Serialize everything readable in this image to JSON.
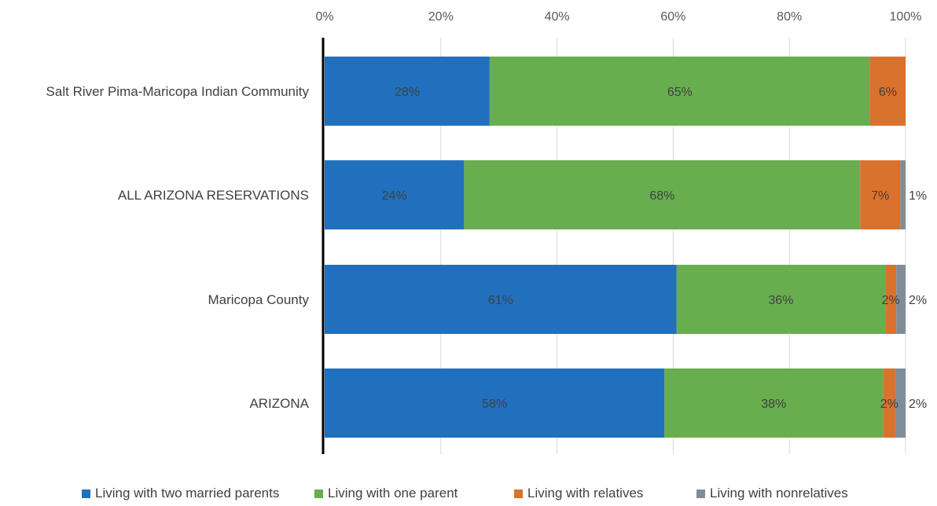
{
  "chart_data": {
    "type": "bar",
    "orientation": "horizontal",
    "stacked": "percent",
    "title": "",
    "xlabel": "",
    "ylabel": "",
    "xlim": [
      0,
      100
    ],
    "x_ticks": [
      "0%",
      "20%",
      "40%",
      "60%",
      "80%",
      "100%"
    ],
    "x_axis_position": "top",
    "grid": true,
    "legend_position": "bottom",
    "categories": [
      "Salt River Pima-Maricopa Indian Community",
      "ALL ARIZONA RESERVATIONS",
      "Maricopa County",
      "ARIZONA"
    ],
    "series": [
      {
        "name": "Living with two married parents",
        "color": "#2170bd",
        "values": [
          28.4,
          24.0,
          60.6,
          58.5
        ],
        "labels": [
          "28%",
          "24%",
          "61%",
          "58%"
        ]
      },
      {
        "name": "Living with one parent",
        "color": "#68ae4f",
        "values": [
          65.5,
          68.2,
          35.9,
          37.6
        ],
        "labels": [
          "65%",
          "68%",
          "36%",
          "38%"
        ]
      },
      {
        "name": "Living with relatives",
        "color": "#d9722d",
        "values": [
          6.1,
          6.9,
          1.9,
          2.2
        ],
        "labels": [
          "6%",
          "7%",
          "2%",
          "2%"
        ]
      },
      {
        "name": "Living with nonrelatives",
        "color": "#7f8d9b",
        "values": [
          0.0,
          0.9,
          1.6,
          1.7
        ],
        "labels": [
          "",
          "1%",
          "2%",
          "2%"
        ]
      }
    ]
  }
}
